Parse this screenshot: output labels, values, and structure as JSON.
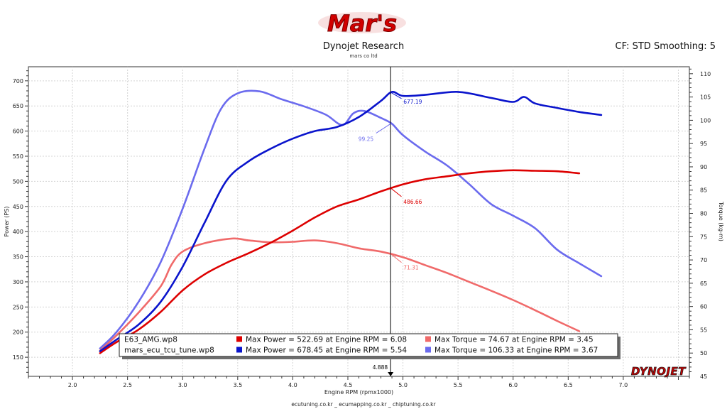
{
  "header": {
    "logo_text": "Mar's",
    "title": "Dynojet Research",
    "subtitle": "mars co ltd",
    "settings": "CF: STD Smoothing: 5"
  },
  "footer": {
    "text": "ecutuning.co.kr _ ecumapping.co.kr _ chiptuning.co.kr"
  },
  "brand": {
    "text": "DYNOJET"
  },
  "colors": {
    "red_power": "#dd0000",
    "red_torque": "#f06a6a",
    "blue_power": "#0a14cc",
    "blue_torque": "#6b6bee",
    "cursor": "#000000"
  },
  "chart_data": {
    "type": "line",
    "title": "Dynojet Research",
    "xlabel": "Engine RPM (rpmx1000)",
    "ylabel_left": "Power (PS)",
    "ylabel_right": "Torque (kg-m)",
    "xlim": [
      1.6,
      7.6
    ],
    "ylim_left": [
      112,
      728
    ],
    "ylim_right": [
      45,
      111.5
    ],
    "xticks": [
      "2.0",
      "2.5",
      "3.0",
      "3.5",
      "4.0",
      "4.5",
      "5.0",
      "5.5",
      "6.0",
      "6.5",
      "7.0"
    ],
    "yticks_left": [
      "150",
      "200",
      "250",
      "300",
      "350",
      "400",
      "450",
      "500",
      "550",
      "600",
      "650",
      "700"
    ],
    "yticks_right": [
      "45",
      "50",
      "55",
      "60",
      "65",
      "70",
      "75",
      "80",
      "85",
      "90",
      "95",
      "100",
      "105",
      "110"
    ],
    "grid": true,
    "cursor": {
      "rpm": 4.888,
      "rpm_label": "4.888",
      "annotations": [
        {
          "series": "mars_power",
          "value": 677.19,
          "label": "677.19"
        },
        {
          "series": "mars_torque",
          "value": 99.25,
          "label": "99.25"
        },
        {
          "series": "e63_power",
          "value": 486.66,
          "label": "486.66"
        },
        {
          "series": "e63_torque",
          "value": 71.31,
          "label": "71.31"
        }
      ]
    },
    "series": [
      {
        "id": "e63_power",
        "name": "E63_AMG.wp8",
        "axis": "left",
        "color": "#dd0000",
        "width": 2.6,
        "x": [
          2.25,
          2.4,
          2.6,
          2.8,
          3.0,
          3.2,
          3.4,
          3.6,
          3.8,
          4.0,
          4.2,
          4.4,
          4.6,
          4.8,
          5.0,
          5.2,
          5.4,
          5.6,
          5.8,
          6.0,
          6.2,
          6.4,
          6.6
        ],
        "y": [
          158,
          180,
          205,
          240,
          283,
          315,
          338,
          357,
          378,
          402,
          428,
          450,
          464,
          480,
          494,
          504,
          510,
          516,
          520,
          522,
          521,
          520,
          516
        ]
      },
      {
        "id": "e63_torque",
        "name": "E63_AMG.wp8",
        "axis": "right",
        "color": "#f06a6a",
        "width": 2.6,
        "x": [
          2.25,
          2.4,
          2.6,
          2.8,
          2.9,
          3.0,
          3.2,
          3.45,
          3.6,
          3.8,
          4.0,
          4.2,
          4.4,
          4.6,
          4.8,
          5.0,
          5.2,
          5.4,
          5.6,
          5.8,
          6.0,
          6.2,
          6.4,
          6.6
        ],
        "y": [
          50.5,
          53.8,
          58.7,
          64.3,
          69.0,
          71.8,
          73.6,
          74.6,
          74.2,
          73.8,
          73.9,
          74.2,
          73.6,
          72.5,
          71.8,
          70.6,
          68.9,
          67.2,
          65.3,
          63.4,
          61.4,
          59.2,
          56.9,
          54.7
        ]
      },
      {
        "id": "mars_power",
        "name": "mars_ecu_tcu_tune.wp8",
        "axis": "left",
        "color": "#0a14cc",
        "width": 2.6,
        "x": [
          2.25,
          2.4,
          2.6,
          2.8,
          3.0,
          3.2,
          3.4,
          3.6,
          3.8,
          4.0,
          4.2,
          4.4,
          4.6,
          4.8,
          4.9,
          5.0,
          5.2,
          5.5,
          5.8,
          6.0,
          6.1,
          6.2,
          6.4,
          6.6,
          6.8
        ],
        "y": [
          162,
          185,
          215,
          260,
          330,
          418,
          502,
          540,
          565,
          585,
          600,
          608,
          628,
          660,
          678,
          670,
          672,
          678,
          666,
          658,
          668,
          655,
          646,
          638,
          632
        ]
      },
      {
        "id": "mars_torque",
        "name": "mars_ecu_tcu_tune.wp8",
        "axis": "right",
        "color": "#6b6bee",
        "width": 2.6,
        "x": [
          2.25,
          2.4,
          2.6,
          2.8,
          3.0,
          3.2,
          3.35,
          3.5,
          3.7,
          3.9,
          4.1,
          4.3,
          4.45,
          4.55,
          4.65,
          4.8,
          4.9,
          5.0,
          5.2,
          5.4,
          5.6,
          5.8,
          6.0,
          6.2,
          6.4,
          6.6,
          6.8
        ],
        "y": [
          51.0,
          54.5,
          61.0,
          69.5,
          81.0,
          94.0,
          102.5,
          105.8,
          106.2,
          104.5,
          103.0,
          101.2,
          99.0,
          101.5,
          102.0,
          100.5,
          99.25,
          96.8,
          93.3,
          90.3,
          86.3,
          82.0,
          79.5,
          76.8,
          72.2,
          69.3,
          66.5
        ]
      }
    ],
    "legend": {
      "placement": "bottom-left",
      "rows": [
        {
          "file": "E63_AMG.wp8",
          "power_label": "Max Power = 522.69 at Engine RPM = 6.08",
          "torque_label": "Max Torque = 74.67 at Engine RPM = 3.45",
          "power_color": "#dd0000",
          "torque_color": "#f06a6a"
        },
        {
          "file": "mars_ecu_tcu_tune.wp8",
          "power_label": "Max Power = 678.45 at Engine RPM = 5.54",
          "torque_label": "Max Torque = 106.33 at Engine RPM = 3.67",
          "power_color": "#0a14cc",
          "torque_color": "#6b6bee"
        }
      ]
    }
  }
}
